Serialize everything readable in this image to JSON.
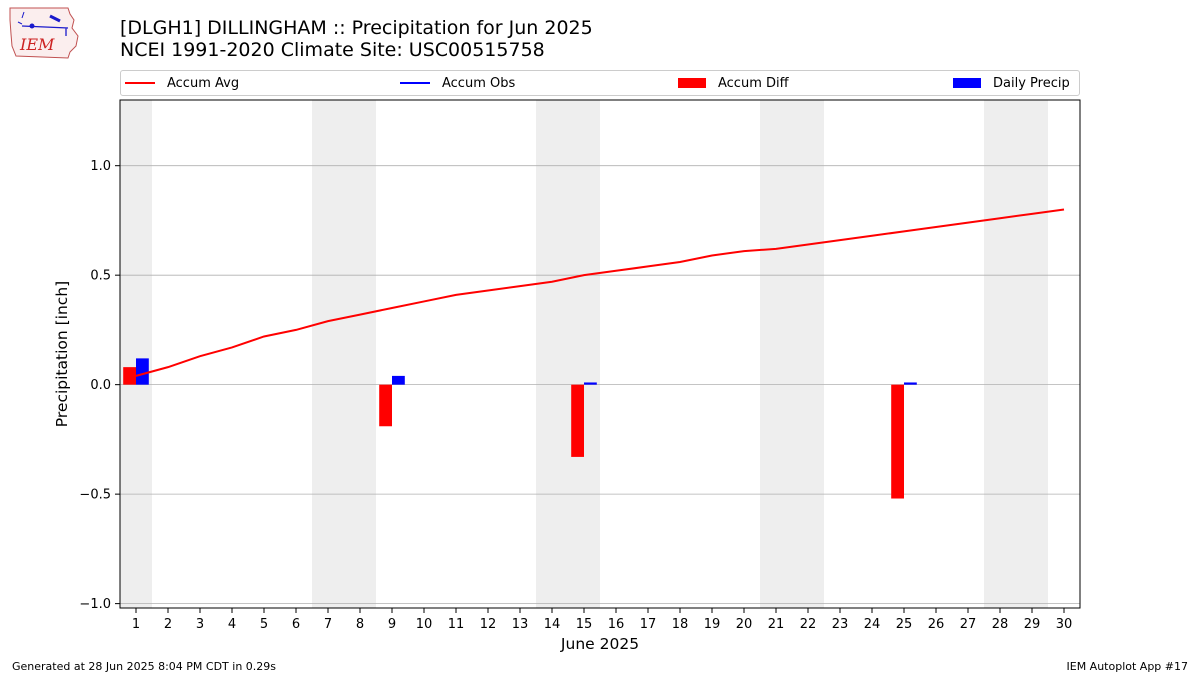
{
  "header": {
    "logo_text": "IEM",
    "title_line1": "[DLGH1] DILLINGHAM :: Precipitation for Jun 2025",
    "title_line2": "NCEI 1991-2020 Climate Site: USC00515758"
  },
  "colors": {
    "accum_avg": "#ff0000",
    "accum_obs": "#0000ff",
    "accum_diff": "#ff0000",
    "daily_precip": "#0000ff",
    "weekend_shade": "#eeeeee",
    "grid": "#b0b0b0"
  },
  "legend": {
    "accum_avg": "Accum Avg",
    "accum_obs": "Accum Obs",
    "accum_diff": "Accum Diff",
    "daily_precip": "Daily Precip"
  },
  "chart_data": {
    "type": "bar",
    "xlabel": "June 2025",
    "ylabel": "Precipitation [inch]",
    "xlim": [
      0.5,
      30.5
    ],
    "ylim": [
      -1.02,
      1.3
    ],
    "yticks": [
      -1.0,
      -0.5,
      0.0,
      0.5,
      1.0
    ],
    "ytick_labels": [
      "−1.0",
      "−0.5",
      "0.0",
      "0.5",
      "1.0"
    ],
    "x": [
      1,
      2,
      3,
      4,
      5,
      6,
      7,
      8,
      9,
      10,
      11,
      12,
      13,
      14,
      15,
      16,
      17,
      18,
      19,
      20,
      21,
      22,
      23,
      24,
      25,
      26,
      27,
      28,
      29,
      30
    ],
    "shaded_weekend_days": [
      1,
      7,
      8,
      14,
      15,
      21,
      22,
      28,
      29
    ],
    "grid": "y-major",
    "series": [
      {
        "name": "Accum Avg",
        "type": "line",
        "values": [
          0.04,
          0.08,
          0.13,
          0.17,
          0.22,
          0.25,
          0.29,
          0.32,
          0.35,
          0.38,
          0.41,
          0.43,
          0.45,
          0.47,
          0.5,
          0.52,
          0.54,
          0.56,
          0.59,
          0.61,
          0.62,
          0.64,
          0.66,
          0.68,
          0.7,
          0.72,
          0.74,
          0.76,
          0.78,
          0.8
        ]
      },
      {
        "name": "Accum Diff",
        "type": "bar",
        "points": [
          {
            "x": 1,
            "value": 0.08
          },
          {
            "x": 9,
            "value": -0.19
          },
          {
            "x": 15,
            "value": -0.33
          },
          {
            "x": 25,
            "value": -0.52
          }
        ]
      },
      {
        "name": "Daily Precip",
        "type": "bar",
        "points": [
          {
            "x": 1,
            "value": 0.12
          },
          {
            "x": 9,
            "value": 0.04
          },
          {
            "x": 15,
            "value": 0.01
          },
          {
            "x": 25,
            "value": 0.01
          }
        ]
      }
    ]
  },
  "footer": {
    "generated": "Generated at 28 Jun 2025 8:04 PM CDT in 0.29s",
    "app": "IEM Autoplot App #17"
  }
}
